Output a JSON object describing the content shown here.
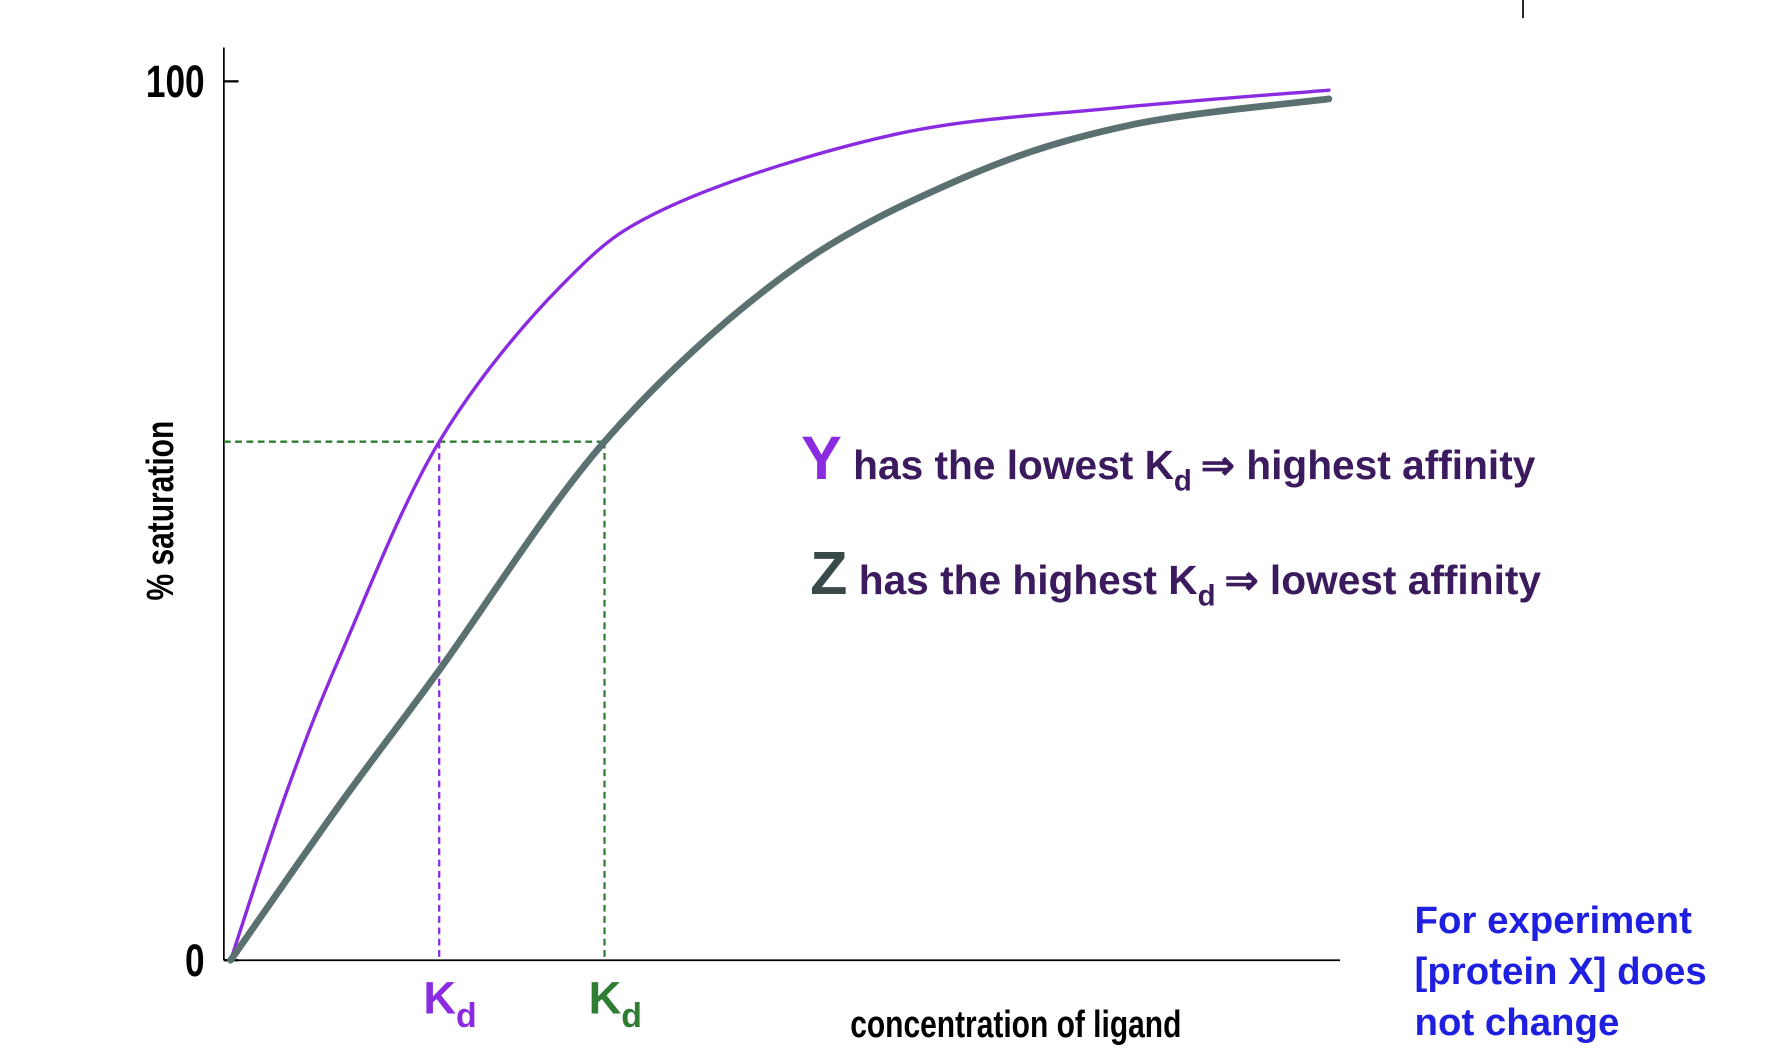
{
  "chart_data": {
    "type": "line",
    "ylabel": "% saturation",
    "xlabel": "concentration of ligand",
    "xlim": [
      0,
      10
    ],
    "ylim": [
      0,
      100
    ],
    "yticks": [
      0,
      100
    ],
    "series": [
      {
        "color": "#8a2be2",
        "x": [
          0,
          0.5,
          1,
          1.88,
          3,
          4,
          6,
          8,
          9.9
        ],
        "values": [
          0,
          19,
          35,
          59,
          77,
          86,
          94,
          97,
          99
        ]
      },
      {
        "color": "#5b7171",
        "x": [
          0,
          1,
          1.88,
          3.37,
          5,
          6.6,
          8.1,
          9.9
        ],
        "values": [
          0,
          18,
          33,
          59,
          78,
          89,
          95,
          98
        ]
      }
    ],
    "kd_level": 59,
    "kd_markers": [
      {
        "x": 1.88,
        "label": "K",
        "sub": "d",
        "color": "#8a2be2"
      },
      {
        "x": 3.37,
        "label": "K",
        "sub": "d",
        "color": "#2e7d32"
      }
    ],
    "annotations": [
      {
        "letter": "Y",
        "letter_color": "#8a2be2",
        "before": "has the lowest K",
        "sub": "d",
        "after": "⇒ highest affinity"
      },
      {
        "letter": "Z",
        "letter_color": "#3a4a4a",
        "before": "has the highest K",
        "sub": "d",
        "after": "⇒ lowest affinity"
      }
    ],
    "note": [
      "For experiment",
      "[protein X] does",
      "not change"
    ]
  }
}
